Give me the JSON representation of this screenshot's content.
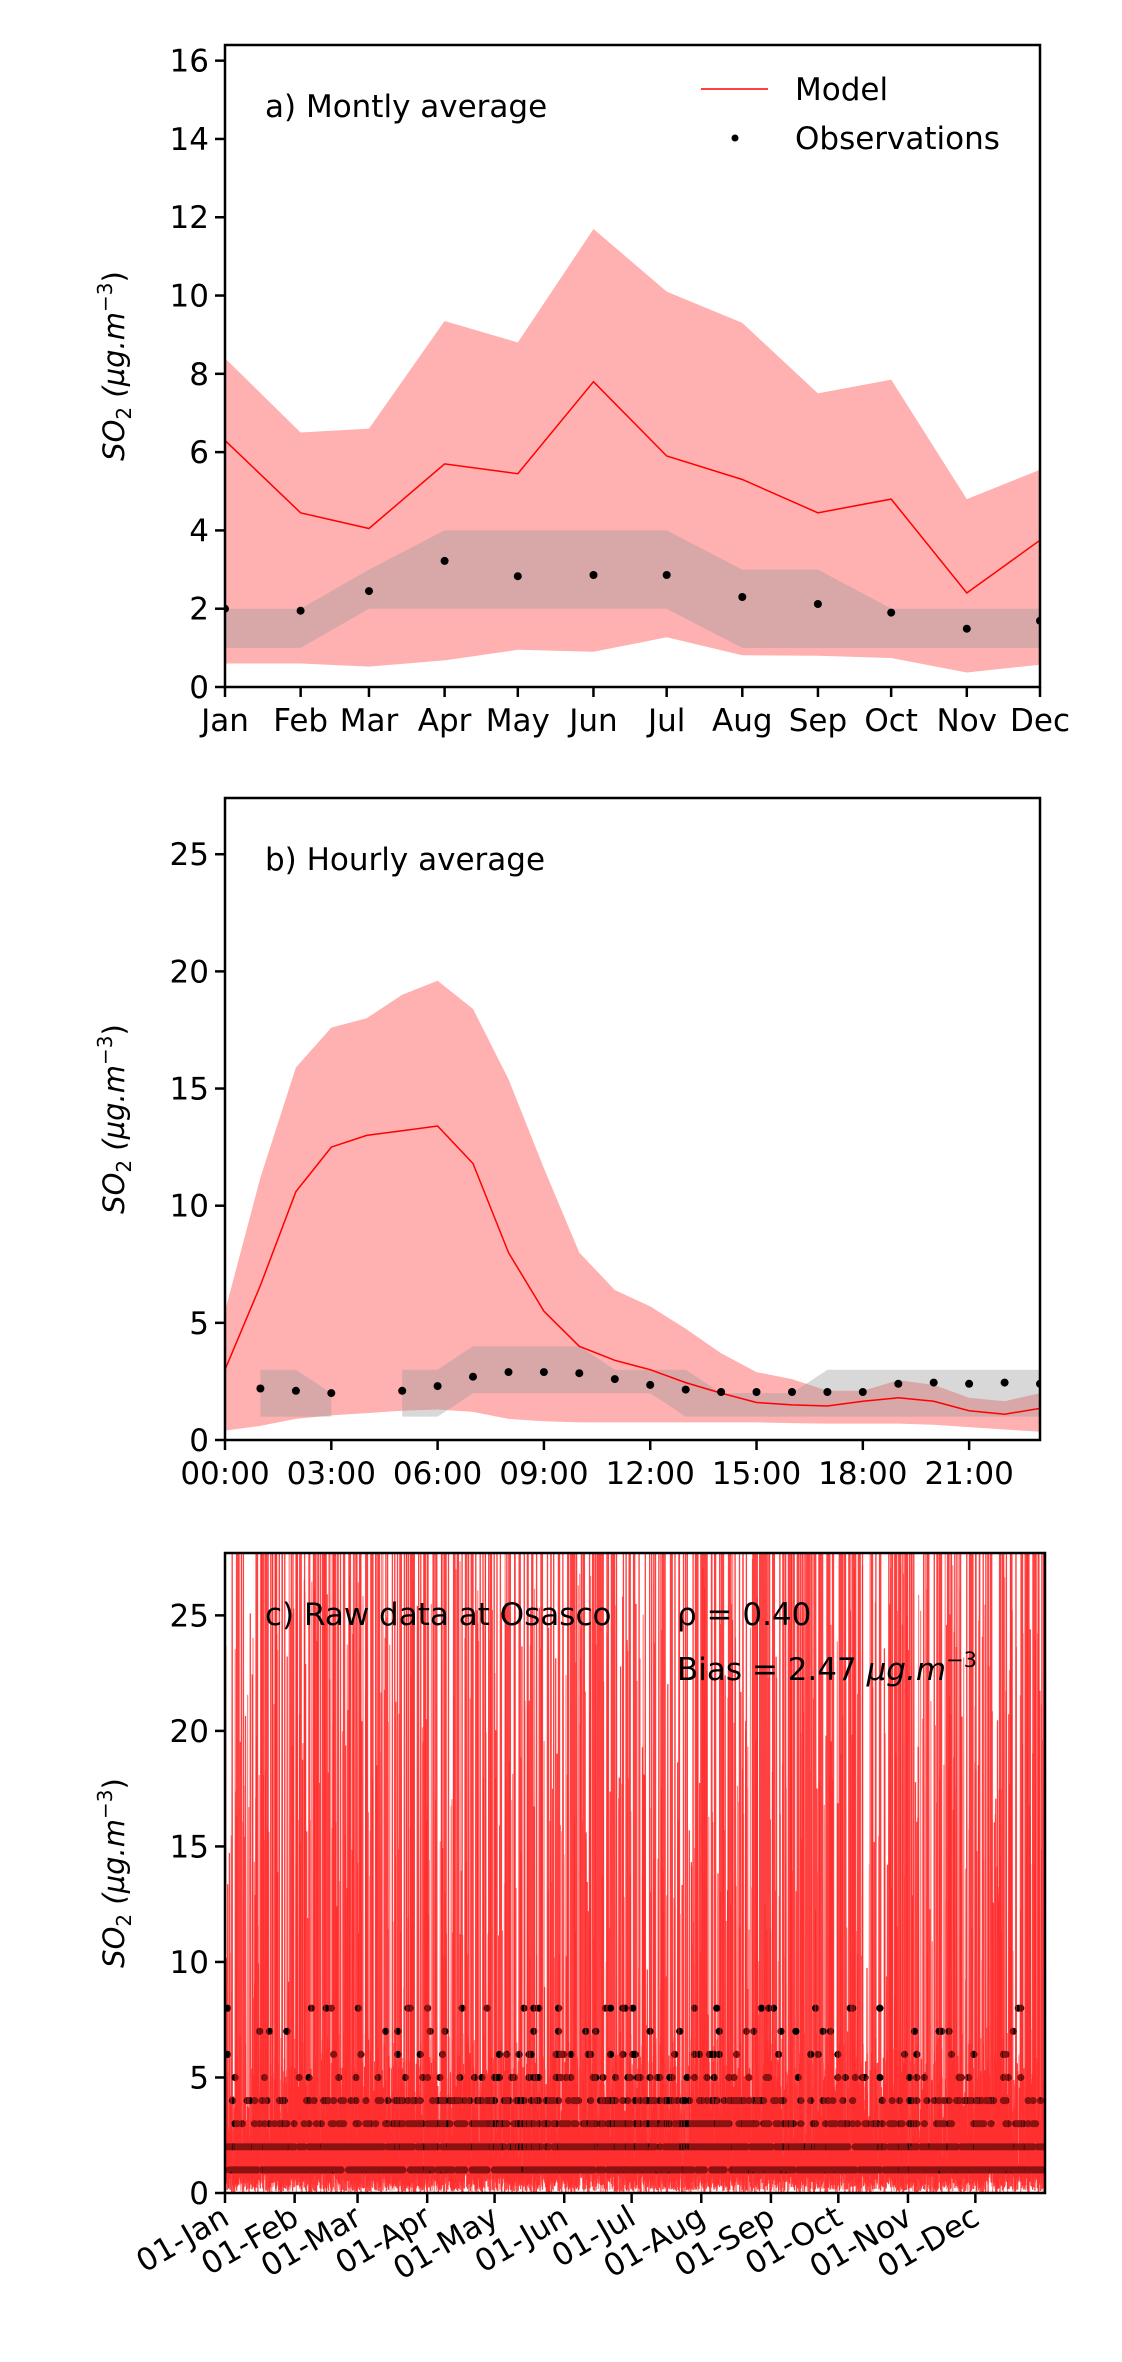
{
  "colors": {
    "model_line": "#ff0000",
    "model_band": "#ffb0b0",
    "obs_band": "#999999",
    "obs_point": "#000000",
    "raw_model": "#ff2020"
  },
  "legend": {
    "placement": "top-right",
    "model_label": "Model",
    "obs_label": "Observations"
  },
  "chart_data": [
    {
      "type": "line",
      "panel": "a",
      "title": "a) Montly average",
      "ylabel": "SO2 (µg.m-3)",
      "ylabel_parts": {
        "base": "SO",
        "sub": "2",
        "unit": " (µg.m",
        "sup": "−3",
        "close": ")"
      },
      "xlabel": "",
      "ylim": [
        0,
        16.4
      ],
      "yticks": [
        0,
        2,
        4,
        6,
        8,
        10,
        12,
        14,
        16
      ],
      "xlim_days": [
        0,
        334
      ],
      "categories": [
        "Jan",
        "Feb",
        "Mar",
        "Apr",
        "May",
        "Jun",
        "Jul",
        "Aug",
        "Sep",
        "Oct",
        "Nov",
        "Dec"
      ],
      "x_days": [
        0,
        31,
        59,
        90,
        120,
        151,
        181,
        212,
        243,
        273,
        304,
        334
      ],
      "series": [
        {
          "name": "Model",
          "kind": "line",
          "values": [
            6.3,
            4.45,
            4.05,
            5.7,
            5.45,
            7.8,
            5.9,
            5.3,
            4.45,
            4.8,
            2.4,
            3.75
          ]
        },
        {
          "name": "Model range upper",
          "kind": "band-upper",
          "values": [
            8.4,
            6.5,
            6.6,
            9.35,
            8.8,
            11.7,
            10.1,
            9.3,
            7.5,
            7.85,
            4.8,
            5.55
          ]
        },
        {
          "name": "Model range lower",
          "kind": "band-lower",
          "values": [
            0.6,
            0.6,
            0.52,
            0.68,
            0.95,
            0.9,
            1.27,
            0.81,
            0.8,
            0.74,
            0.37,
            0.57
          ]
        },
        {
          "name": "Observations",
          "kind": "points",
          "values": [
            2.0,
            1.95,
            2.45,
            3.22,
            2.83,
            2.86,
            2.86,
            2.3,
            2.12,
            1.9,
            1.49,
            1.69
          ]
        },
        {
          "name": "Observations IQR upper",
          "kind": "band-upper",
          "values": [
            2,
            2,
            3,
            4,
            4,
            4,
            4,
            3,
            3,
            2,
            2,
            2
          ]
        },
        {
          "name": "Observations IQR lower",
          "kind": "band-lower",
          "values": [
            1,
            1,
            2,
            2,
            2,
            2,
            2,
            1,
            1,
            1,
            1,
            1
          ]
        }
      ]
    },
    {
      "type": "line",
      "panel": "b",
      "title": "b) Hourly average",
      "ylabel": "SO2 (µg.m-3)",
      "ylabel_parts": {
        "base": "SO",
        "sub": "2",
        "unit": " (µg.m",
        "sup": "−3",
        "close": ")"
      },
      "xlabel": "",
      "ylim": [
        0,
        27.4
      ],
      "yticks": [
        0,
        5,
        10,
        15,
        20,
        25
      ],
      "xlim": [
        0,
        23
      ],
      "xticks": [
        0,
        3,
        6,
        9,
        12,
        15,
        18,
        21
      ],
      "xtick_labels": [
        "00:00",
        "03:00",
        "06:00",
        "09:00",
        "12:00",
        "15:00",
        "18:00",
        "21:00"
      ],
      "x": [
        0,
        1,
        2,
        3,
        4,
        5,
        6,
        7,
        8,
        9,
        10,
        11,
        12,
        13,
        14,
        15,
        16,
        17,
        18,
        19,
        20,
        21,
        22,
        23
      ],
      "series": [
        {
          "name": "Model",
          "kind": "line",
          "values": [
            3.0,
            6.6,
            10.6,
            12.5,
            13.0,
            13.2,
            13.4,
            11.8,
            8.0,
            5.5,
            4.0,
            3.4,
            3.0,
            2.45,
            2.0,
            1.6,
            1.5,
            1.45,
            1.65,
            1.8,
            1.65,
            1.25,
            1.1,
            1.35
          ]
        },
        {
          "name": "Model range upper",
          "kind": "band-upper",
          "values": [
            5.5,
            11.2,
            15.9,
            17.6,
            18.0,
            19.0,
            19.6,
            18.4,
            15.4,
            11.6,
            8.0,
            6.4,
            5.7,
            4.75,
            3.7,
            2.9,
            2.6,
            2.1,
            2.1,
            2.55,
            2.35,
            1.8,
            1.65,
            2.0
          ]
        },
        {
          "name": "Model range lower",
          "kind": "band-lower",
          "values": [
            0.4,
            0.6,
            0.9,
            1.05,
            1.15,
            1.25,
            1.3,
            1.2,
            0.9,
            0.8,
            0.75,
            0.75,
            0.75,
            0.75,
            0.75,
            0.75,
            0.72,
            0.7,
            0.7,
            0.7,
            0.65,
            0.55,
            0.45,
            0.35
          ]
        },
        {
          "name": "Observations",
          "kind": "points",
          "values": [
            null,
            2.2,
            2.1,
            2.0,
            null,
            2.1,
            2.3,
            2.7,
            2.9,
            2.9,
            2.85,
            2.6,
            2.35,
            2.15,
            2.05,
            2.05,
            2.05,
            2.05,
            2.05,
            2.4,
            2.45,
            2.4,
            2.45,
            2.4
          ]
        },
        {
          "name": "Observations IQR upper",
          "kind": "band-upper",
          "values": [
            null,
            3,
            3,
            2,
            null,
            3,
            3,
            4,
            4,
            4,
            4,
            3,
            3,
            3,
            2,
            2,
            2,
            3,
            3,
            3,
            3,
            3,
            3,
            3
          ]
        },
        {
          "name": "Observations IQR lower",
          "kind": "band-lower",
          "values": [
            null,
            1,
            1,
            1,
            null,
            1,
            1,
            2,
            2,
            2,
            2,
            2,
            2,
            1,
            1,
            1,
            1,
            1,
            1,
            1,
            1,
            1,
            1,
            1
          ]
        }
      ]
    },
    {
      "type": "line",
      "panel": "c",
      "title": "c) Raw data at Osasco",
      "annotations": [
        "ρ = 0.40",
        "Bias = 2.47"
      ],
      "bias_unit": {
        "base": " µg.m",
        "sup": "−3"
      },
      "correlation": 0.4,
      "bias": 2.47,
      "ylabel": "SO2 (µg.m-3)",
      "ylabel_parts": {
        "base": "SO",
        "sub": "2",
        "unit": " (µg.m",
        "sup": "−3",
        "close": ")"
      },
      "xlabel": "",
      "ylim": [
        0,
        27.7
      ],
      "yticks": [
        0,
        5,
        10,
        15,
        20,
        25
      ],
      "xlim_days": [
        0,
        365
      ],
      "xtick_days": [
        0,
        31,
        59,
        90,
        120,
        151,
        181,
        212,
        243,
        273,
        304,
        334
      ],
      "xtick_labels": [
        "01-Jan",
        "01-Feb",
        "01-Mar",
        "01-Apr",
        "01-May",
        "01-Jun",
        "01-Jul",
        "01-Aug",
        "01-Sep",
        "01-Oct",
        "01-Nov",
        "01-Dec"
      ],
      "series": [
        {
          "name": "Model (hourly raw)",
          "kind": "dense-line",
          "note": "hourly values spanning 0 to beyond axis top; rendered as dense pseudo-random trace",
          "typical_range": [
            0,
            27.7
          ]
        },
        {
          "name": "Observations (hourly raw)",
          "kind": "points",
          "levels": [
            1,
            2,
            3,
            4,
            5,
            6,
            7,
            8
          ]
        }
      ]
    }
  ]
}
